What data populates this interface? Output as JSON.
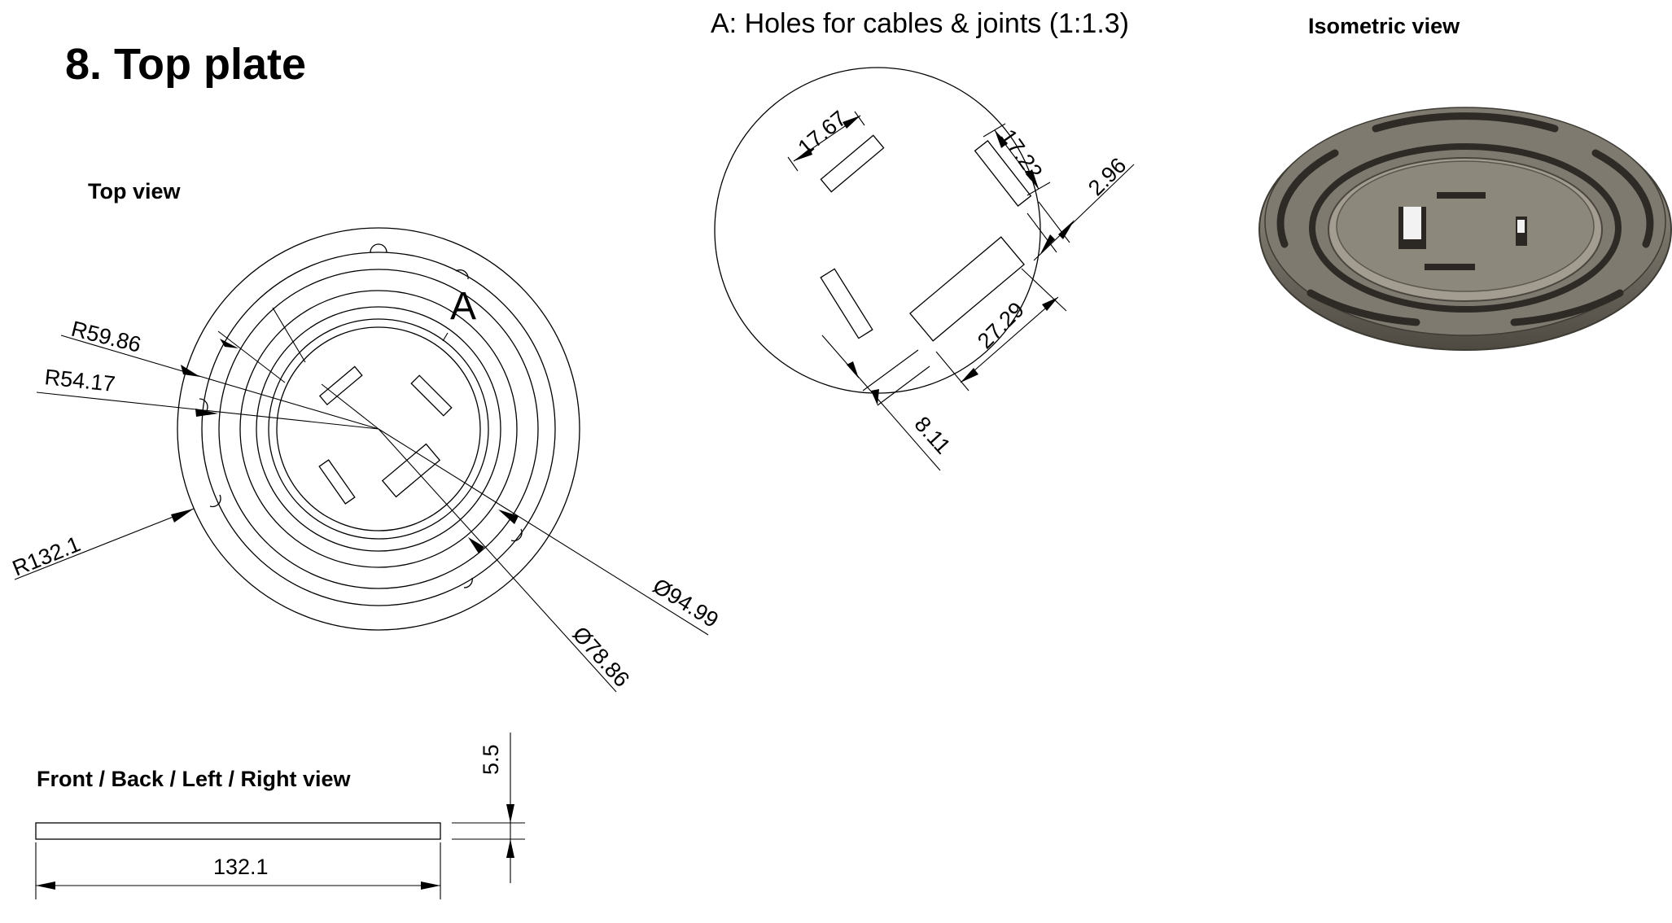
{
  "title": "8. Top plate",
  "views": {
    "top": "Top view",
    "front": "Front / Back / Left / Right view",
    "isometric": "Isometric view",
    "detail": "A: Holes for cables & joints (1:1.3)"
  },
  "detail_marker": "A",
  "top_view_dimensions": {
    "r_outer": "R132.1",
    "r_59": "R59.86",
    "r_54": "R54.17",
    "d_94": "Ø94.99",
    "d_78": "Ø78.86"
  },
  "detail_dimensions": {
    "d1": "17.67",
    "d2": "17.22",
    "d3": "2.96",
    "d4": "27.29",
    "d5": "8.11"
  },
  "side_view_dimensions": {
    "width": "132.1",
    "thickness": "5.5"
  },
  "colors": {
    "line": "#000000",
    "plate_dark": "#5e5a51",
    "plate_mid": "#8a857a",
    "plate_light": "#b5b0a4",
    "background": "#ffffff"
  }
}
